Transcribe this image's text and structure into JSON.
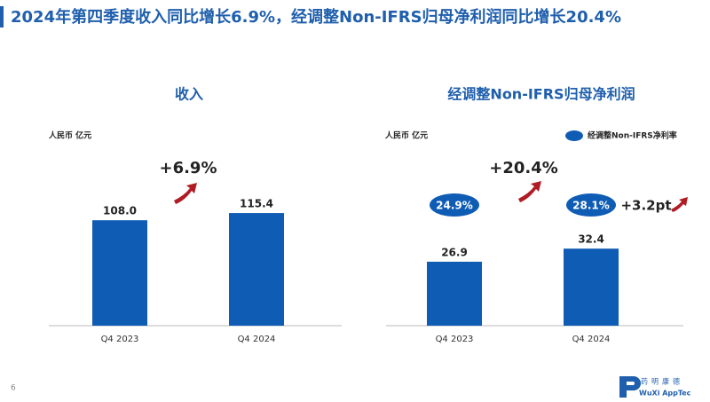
{
  "slide_title": "2024年第四季度收入同比增长6.9%，经调整Non-IFRS归母净利润同比增长20.4%",
  "page_number": "6",
  "logo": {
    "cn": "药明康德",
    "en": "WuXi AppTec"
  },
  "chart_data": [
    {
      "type": "bar",
      "title": "收入",
      "unit_label": "人民币 亿元",
      "categories": [
        "Q4 2023",
        "Q4 2024"
      ],
      "values": [
        108.0,
        115.4
      ],
      "value_labels": [
        "108.0",
        "115.4"
      ],
      "color": "#0f5cb5",
      "annotation": "+6.9%"
    },
    {
      "type": "bar",
      "title": "经调整Non-IFRS归母净利润",
      "unit_label": "人民币 亿元",
      "categories": [
        "Q4 2023",
        "Q4 2024"
      ],
      "values": [
        26.9,
        32.4
      ],
      "value_labels": [
        "26.9",
        "32.4"
      ],
      "color": "#0f5cb5",
      "annotation": "+20.4%",
      "margin": {
        "name": "经调整Non-IFRS净利率",
        "values": [
          24.9,
          28.1
        ],
        "value_labels": [
          "24.9%",
          "28.1%"
        ],
        "color": "#0f5cb5",
        "annotation": "+3.2pt"
      }
    }
  ]
}
